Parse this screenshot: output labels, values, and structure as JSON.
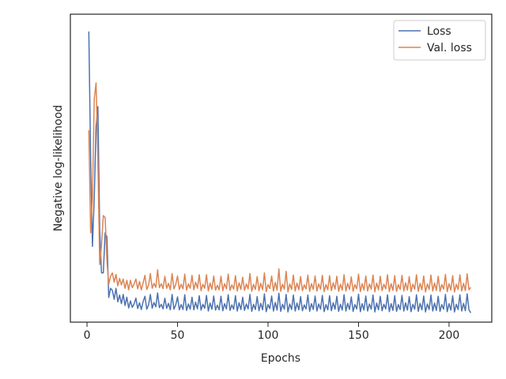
{
  "chart_data": {
    "type": "line",
    "xlabel": "Epochs",
    "ylabel": "Negative log-likelihood",
    "xlim": [
      -9.2,
      223.6
    ],
    "xticks": [
      0,
      50,
      100,
      150,
      200
    ],
    "ylim": [
      0,
      100
    ],
    "legend": "upper right",
    "grid": false,
    "x": [
      1,
      2,
      3,
      4,
      5,
      6,
      7,
      8,
      9,
      10,
      11,
      12,
      13,
      14,
      15,
      16,
      17,
      18,
      19,
      20,
      21,
      22,
      23,
      24,
      25,
      26,
      27,
      28,
      29,
      30,
      31,
      32,
      33,
      34,
      35,
      36,
      37,
      38,
      39,
      40,
      41,
      42,
      43,
      44,
      45,
      46,
      47,
      48,
      49,
      50,
      51,
      52,
      53,
      54,
      55,
      56,
      57,
      58,
      59,
      60,
      61,
      62,
      63,
      64,
      65,
      66,
      67,
      68,
      69,
      70,
      71,
      72,
      73,
      74,
      75,
      76,
      77,
      78,
      79,
      80,
      81,
      82,
      83,
      84,
      85,
      86,
      87,
      88,
      89,
      90,
      91,
      92,
      93,
      94,
      95,
      96,
      97,
      98,
      99,
      100,
      101,
      102,
      103,
      104,
      105,
      106,
      107,
      108,
      109,
      110,
      111,
      112,
      113,
      114,
      115,
      116,
      117,
      118,
      119,
      120,
      121,
      122,
      123,
      124,
      125,
      126,
      127,
      128,
      129,
      130,
      131,
      132,
      133,
      134,
      135,
      136,
      137,
      138,
      139,
      140,
      141,
      142,
      143,
      144,
      145,
      146,
      147,
      148,
      149,
      150,
      151,
      152,
      153,
      154,
      155,
      156,
      157,
      158,
      159,
      160,
      161,
      162,
      163,
      164,
      165,
      166,
      167,
      168,
      169,
      170,
      171,
      172,
      173,
      174,
      175,
      176,
      177,
      178,
      179,
      180,
      181,
      182,
      183,
      184,
      185,
      186,
      187,
      188,
      189,
      190,
      191,
      192,
      193,
      194,
      195,
      196,
      197,
      198,
      199,
      200,
      201,
      202,
      203,
      204,
      205,
      206,
      207,
      208,
      209,
      210,
      211,
      212
    ],
    "series": [
      {
        "name": "Loss",
        "color": "#4c72b0",
        "values": [
          94.4,
          53,
          24.6,
          40.5,
          63.6,
          70,
          30,
          16,
          16,
          29,
          27.7,
          8,
          11,
          10.3,
          7.4,
          11.0,
          6.6,
          8.8,
          6.0,
          9.0,
          5.4,
          8.1,
          4.6,
          6.9,
          4.8,
          5.9,
          7.8,
          4.4,
          6.3,
          4.1,
          6.7,
          8.4,
          4.2,
          5.6,
          9.0,
          4.5,
          6.4,
          5.0,
          9.5,
          4.7,
          5.8,
          4.3,
          7.8,
          4.5,
          6.1,
          4.0,
          9.0,
          4.2,
          5.6,
          8.2,
          4.0,
          5.7,
          4.1,
          8.9,
          3.8,
          5.9,
          4.2,
          8.1,
          4.0,
          6.5,
          4.3,
          8.6,
          3.9,
          5.8,
          4.5,
          8.7,
          3.6,
          6.2,
          4.2,
          8.5,
          3.9,
          5.5,
          4.0,
          8.4,
          3.7,
          6.0,
          4.3,
          8.9,
          3.8,
          5.6,
          4.2,
          8.6,
          3.6,
          6.3,
          4.1,
          8.1,
          3.8,
          5.9,
          4.3,
          9.0,
          3.5,
          5.8,
          4.1,
          8.3,
          3.7,
          6.1,
          4.0,
          9.2,
          3.4,
          5.7,
          4.4,
          8.5,
          3.6,
          6.4,
          3.9,
          9.4,
          3.5,
          5.8,
          4.2,
          9.0,
          3.3,
          5.9,
          4.1,
          8.8,
          3.6,
          6.2,
          4.0,
          8.3,
          3.7,
          5.6,
          4.3,
          8.8,
          3.5,
          6.0,
          4.1,
          8.5,
          3.6,
          5.9,
          4.2,
          8.7,
          3.4,
          5.7,
          4.0,
          8.6,
          3.7,
          6.3,
          4.2,
          8.4,
          3.5,
          5.8,
          3.9,
          8.9,
          3.6,
          6.1,
          4.1,
          8.2,
          3.5,
          5.7,
          4.3,
          9.1,
          3.4,
          6.0,
          3.9,
          8.5,
          3.6,
          5.9,
          4.2,
          8.8,
          3.3,
          6.2,
          4.0,
          8.4,
          3.7,
          5.8,
          4.3,
          8.9,
          3.4,
          6.0,
          3.8,
          8.6,
          3.5,
          5.7,
          4.1,
          8.7,
          3.6,
          6.3,
          3.9,
          8.3,
          3.4,
          5.8,
          4.2,
          8.9,
          3.5,
          6.1,
          4.0,
          8.5,
          3.3,
          5.9,
          4.1,
          8.8,
          3.6,
          6.2,
          3.8,
          8.4,
          3.5,
          5.7,
          4.2,
          9.0,
          3.4,
          6.0,
          3.9,
          8.6,
          3.3,
          5.8,
          4.1,
          8.9,
          3.6,
          6.1,
          3.7,
          9.2,
          4.0,
          3.0
        ]
      },
      {
        "name": "Val. loss",
        "color": "#dd8452",
        "values": [
          62.3,
          29,
          40.5,
          72.6,
          77.7,
          53,
          18.7,
          25,
          34.6,
          34,
          20,
          12.3,
          14.9,
          16.0,
          13.0,
          15.5,
          11.8,
          14.2,
          12.1,
          14.0,
          11.0,
          13.6,
          10.5,
          13.6,
          11.2,
          12.4,
          14.0,
          10.8,
          13.2,
          10.5,
          12.8,
          15.2,
          10.6,
          12.0,
          15.8,
          11.0,
          12.6,
          11.3,
          17.0,
          11.2,
          12.5,
          10.9,
          14.9,
          11.0,
          12.6,
          10.5,
          15.8,
          10.8,
          12.2,
          15.0,
          10.6,
          12.3,
          10.8,
          15.6,
          10.4,
          12.4,
          11.0,
          15.2,
          10.5,
          13.0,
          11.0,
          15.4,
          10.2,
          12.3,
          11.0,
          15.4,
          10.1,
          12.7,
          10.7,
          15.0,
          10.4,
          12.0,
          10.5,
          14.9,
          10.2,
          12.5,
          10.8,
          15.6,
          10.3,
          12.1,
          10.7,
          15.1,
          10.1,
          12.8,
          10.6,
          14.6,
          10.3,
          12.4,
          10.8,
          15.8,
          10.0,
          12.3,
          10.6,
          14.8,
          10.2,
          12.6,
          10.5,
          16.0,
          9.9,
          12.2,
          10.9,
          15.0,
          10.1,
          12.9,
          10.4,
          17.3,
          10.0,
          12.3,
          10.7,
          16.5,
          9.8,
          12.4,
          10.6,
          15.3,
          10.1,
          12.7,
          10.5,
          14.8,
          10.2,
          12.1,
          10.8,
          15.3,
          10.0,
          12.5,
          10.6,
          15.0,
          10.1,
          12.4,
          10.7,
          15.2,
          9.9,
          12.2,
          10.5,
          15.1,
          10.2,
          12.8,
          10.7,
          14.9,
          10.0,
          12.3,
          10.4,
          15.4,
          10.1,
          12.6,
          10.6,
          14.7,
          10.0,
          12.2,
          10.8,
          15.6,
          9.9,
          12.5,
          10.4,
          15.0,
          10.1,
          12.4,
          10.7,
          15.3,
          9.8,
          12.7,
          10.5,
          14.9,
          10.2,
          12.3,
          10.8,
          15.4,
          9.9,
          12.5,
          10.3,
          15.1,
          10.0,
          12.2,
          10.6,
          15.2,
          10.1,
          12.8,
          10.4,
          14.8,
          9.9,
          12.3,
          10.7,
          15.4,
          10.0,
          12.6,
          10.5,
          15.0,
          9.8,
          12.4,
          10.6,
          15.3,
          10.1,
          12.7,
          10.3,
          14.9,
          10.0,
          12.2,
          10.7,
          15.5,
          9.9,
          12.5,
          10.4,
          15.1,
          9.8,
          12.3,
          10.6,
          15.4,
          10.1,
          12.6,
          10.2,
          15.7,
          10.5,
          11.3
        ]
      }
    ]
  }
}
